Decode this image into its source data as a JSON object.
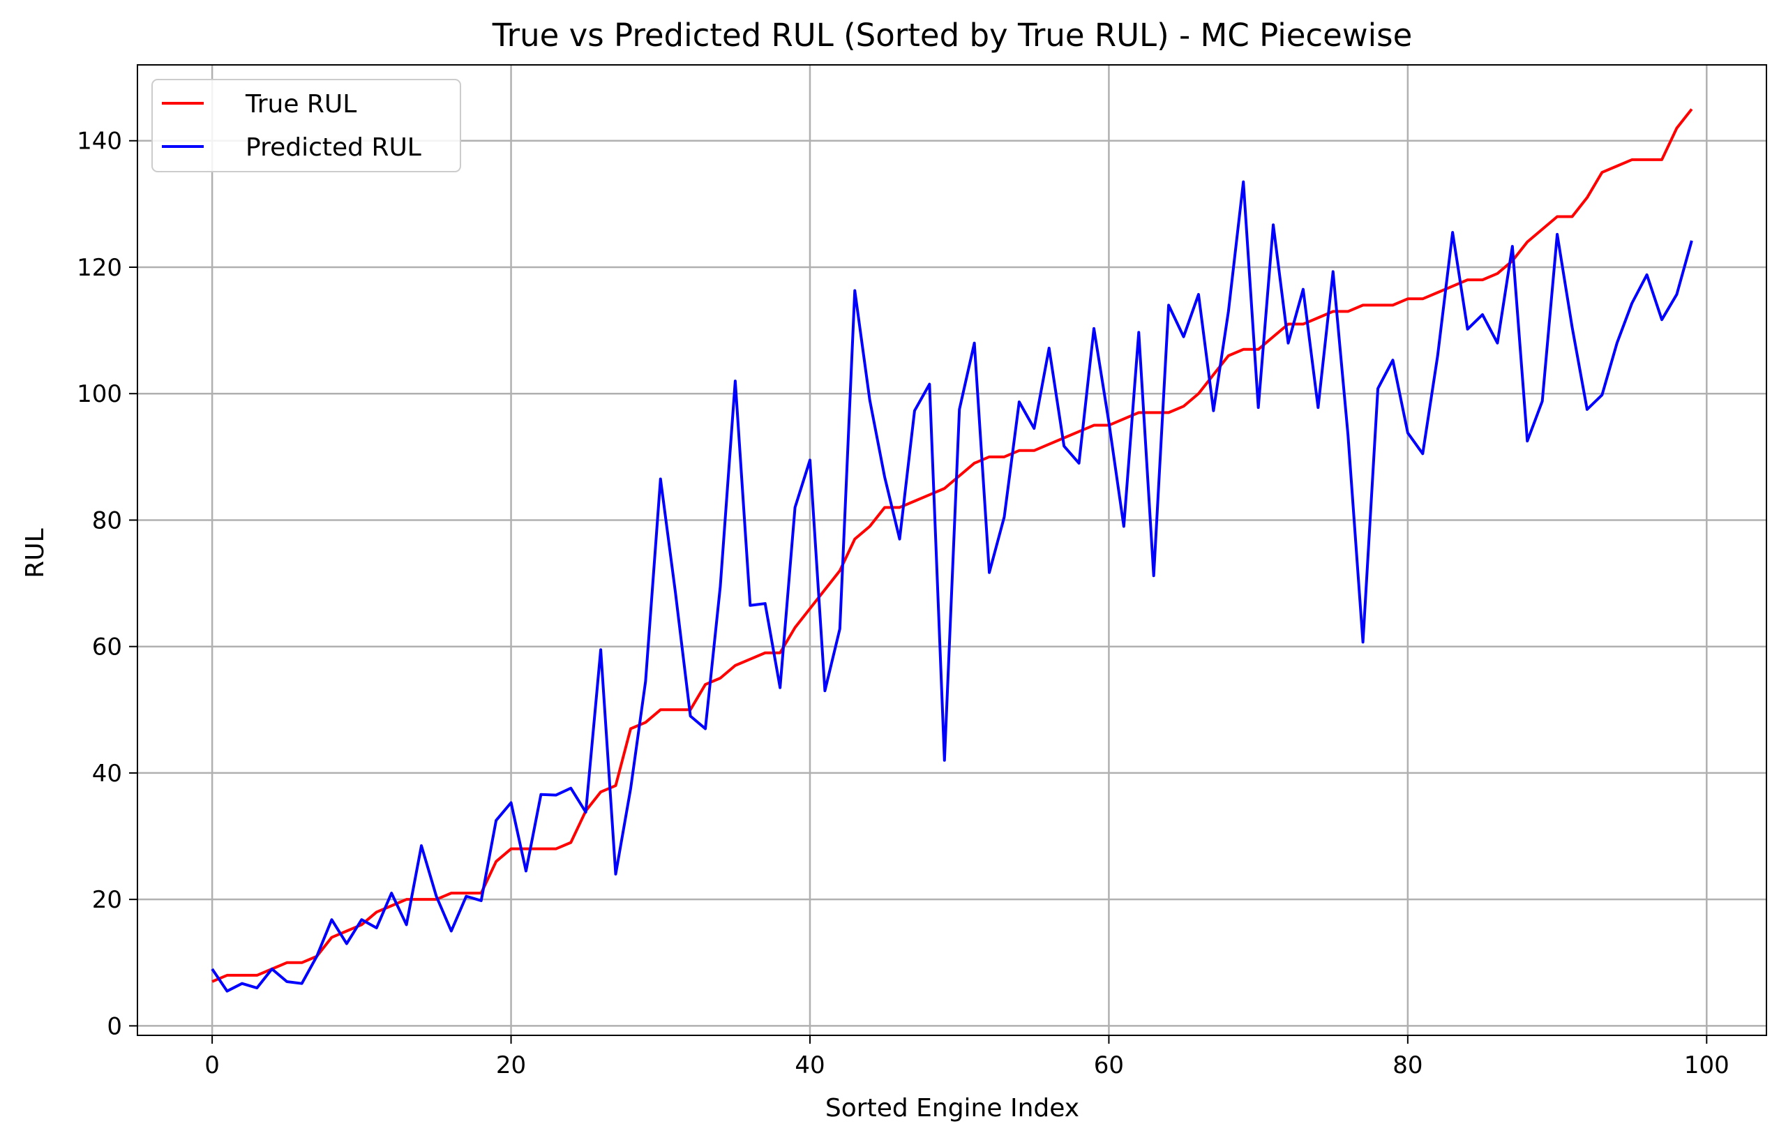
{
  "chart_data": {
    "type": "line",
    "title": "True vs Predicted RUL (Sorted by True RUL) - MC Piecewise",
    "xlabel": "Sorted Engine Index",
    "ylabel": "RUL",
    "xlim": [
      -5,
      104
    ],
    "ylim": [
      -1.5,
      152
    ],
    "xticks": [
      0,
      20,
      40,
      60,
      80,
      100
    ],
    "yticks": [
      0,
      20,
      40,
      60,
      80,
      100,
      120,
      140
    ],
    "grid": true,
    "legend_position": "top-left",
    "series": [
      {
        "name": "True RUL",
        "color": "#ff0000",
        "x": [
          0,
          1,
          2,
          3,
          4,
          5,
          6,
          7,
          8,
          9,
          10,
          11,
          12,
          13,
          14,
          15,
          16,
          17,
          18,
          19,
          20,
          21,
          22,
          23,
          24,
          25,
          26,
          27,
          28,
          29,
          30,
          31,
          32,
          33,
          34,
          35,
          36,
          37,
          38,
          39,
          40,
          41,
          42,
          43,
          44,
          45,
          46,
          47,
          48,
          49,
          50,
          51,
          52,
          53,
          54,
          55,
          56,
          57,
          58,
          59,
          60,
          61,
          62,
          63,
          64,
          65,
          66,
          67,
          68,
          69,
          70,
          71,
          72,
          73,
          74,
          75,
          76,
          77,
          78,
          79,
          80,
          81,
          82,
          83,
          84,
          85,
          86,
          87,
          88,
          89,
          90,
          91,
          92,
          93,
          94,
          95,
          96,
          97,
          98,
          99
        ],
        "values": [
          7,
          8,
          8,
          8,
          9,
          10,
          10,
          11,
          14,
          15,
          16,
          18,
          19,
          20,
          20,
          20,
          21,
          21,
          21,
          26,
          28,
          28,
          28,
          28,
          29,
          34,
          37,
          38,
          47,
          48,
          50,
          50,
          50,
          54,
          55,
          57,
          58,
          59,
          59,
          63,
          66,
          69,
          72,
          77,
          79,
          82,
          82,
          83,
          84,
          85,
          87,
          89,
          90,
          90,
          91,
          91,
          92,
          93,
          94,
          95,
          95,
          96,
          97,
          97,
          97,
          98,
          100,
          103,
          106,
          107,
          107,
          109,
          111,
          111,
          112,
          113,
          113,
          114,
          114,
          114,
          115,
          115,
          116,
          117,
          118,
          118,
          119,
          121,
          124,
          126,
          128,
          128,
          131,
          135,
          136,
          137,
          137,
          137,
          142,
          145
        ]
      },
      {
        "name": "Predicted RUL",
        "color": "#0000ff",
        "x": [
          0,
          1,
          2,
          3,
          4,
          5,
          6,
          7,
          8,
          9,
          10,
          11,
          12,
          13,
          14,
          15,
          16,
          17,
          18,
          19,
          20,
          21,
          22,
          23,
          24,
          25,
          26,
          27,
          28,
          29,
          30,
          31,
          32,
          33,
          34,
          35,
          36,
          37,
          38,
          39,
          40,
          41,
          42,
          43,
          44,
          45,
          46,
          47,
          48,
          49,
          50,
          51,
          52,
          53,
          54,
          55,
          56,
          57,
          58,
          59,
          60,
          61,
          62,
          63,
          64,
          65,
          66,
          67,
          68,
          69,
          70,
          71,
          72,
          73,
          74,
          75,
          76,
          77,
          78,
          79,
          80,
          81,
          82,
          83,
          84,
          85,
          86,
          87,
          88,
          89,
          90,
          91,
          92,
          93,
          94,
          95,
          96,
          97,
          98,
          99
        ],
        "values": [
          9,
          5.5,
          6.7,
          6,
          9,
          7,
          6.7,
          11,
          16.8,
          13,
          16.8,
          15.5,
          21,
          16,
          28.5,
          20.5,
          15,
          20.5,
          19.8,
          32.5,
          35.3,
          24.5,
          36.6,
          36.5,
          37.6,
          33.8,
          59.5,
          24,
          37.5,
          54.5,
          86.5,
          68.5,
          49,
          47,
          69.5,
          102,
          66.5,
          66.8,
          53.5,
          82,
          89.5,
          53,
          62.8,
          116.3,
          99,
          86.8,
          77,
          97.3,
          101.5,
          42,
          97.5,
          108,
          71.7,
          80.5,
          98.7,
          94.5,
          107.2,
          91.7,
          89,
          110.3,
          95.5,
          79,
          109.7,
          71.2,
          114,
          109,
          115.7,
          97.3,
          113,
          133.5,
          97.8,
          126.7,
          108,
          116.5,
          97.8,
          119.3,
          93.5,
          60.7,
          100.8,
          105.3,
          93.8,
          90.5,
          106,
          125.5,
          110.2,
          112.5,
          108,
          123.3,
          92.5,
          98.8,
          125.2,
          110.5,
          97.5,
          99.8,
          108,
          114.3,
          118.8,
          111.7,
          115.7,
          124.2
        ]
      }
    ]
  }
}
